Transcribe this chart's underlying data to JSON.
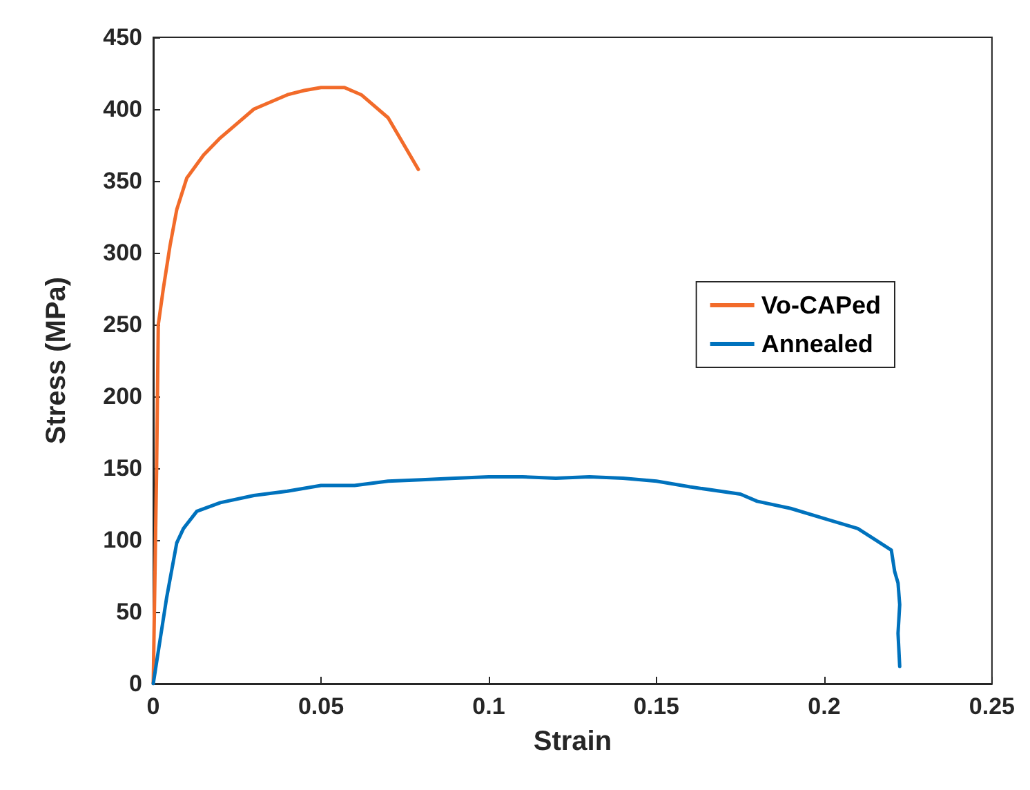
{
  "chart_data": {
    "type": "line",
    "xlabel": "Strain",
    "ylabel": "Stress (MPa)",
    "xlim": [
      0,
      0.25
    ],
    "xticks": [
      0,
      0.05,
      0.1,
      0.15,
      0.2,
      0.25
    ],
    "ylim": [
      0,
      450
    ],
    "yticks": [
      0,
      50,
      100,
      150,
      200,
      250,
      300,
      350,
      400,
      450
    ],
    "grid": false,
    "legend": "right",
    "marker": "none",
    "line_style": "solid",
    "series": [
      {
        "name": "Vo-CAPed",
        "color": "#f26b2a",
        "x": [
          0,
          0.001,
          0.0015,
          0.003,
          0.005,
          0.007,
          0.01,
          0.015,
          0.02,
          0.025,
          0.03,
          0.04,
          0.045,
          0.05,
          0.057,
          0.062,
          0.07,
          0.075,
          0.079
        ],
        "values": [
          0,
          150,
          250,
          275,
          305,
          330,
          352,
          368,
          380,
          390,
          400,
          410,
          413,
          415,
          415,
          410,
          394,
          374,
          358
        ]
      },
      {
        "name": "Annealed",
        "color": "#0072bd",
        "x": [
          0,
          0.002,
          0.004,
          0.007,
          0.009,
          0.013,
          0.02,
          0.03,
          0.04,
          0.05,
          0.06,
          0.07,
          0.08,
          0.09,
          0.1,
          0.11,
          0.12,
          0.13,
          0.14,
          0.15,
          0.16,
          0.175,
          0.18,
          0.19,
          0.2,
          0.21,
          0.22,
          0.221,
          0.222,
          0.2225,
          0.222,
          0.2225
        ],
        "values": [
          0,
          30,
          60,
          98,
          108,
          120,
          126,
          131,
          134,
          138,
          138,
          141,
          142,
          143,
          144,
          144,
          143,
          144,
          143,
          141,
          137,
          132,
          127,
          122,
          115,
          108,
          93,
          78,
          70,
          55,
          35,
          12
        ]
      }
    ]
  }
}
